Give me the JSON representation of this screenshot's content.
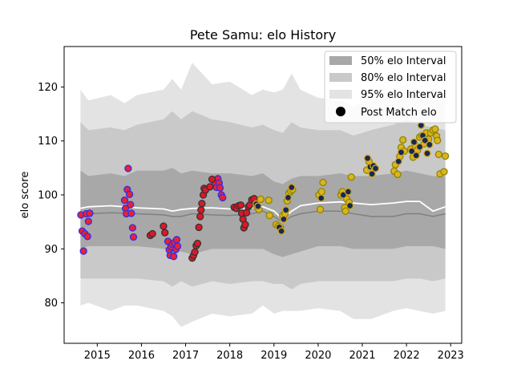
{
  "chart_data": {
    "type": "scatter",
    "title": "Pete Samu: elo History",
    "xlabel": "",
    "ylabel": "elo score",
    "xlim": [
      2014.25,
      2023.25
    ],
    "ylim": [
      72.5,
      127.5
    ],
    "x_ticks": [
      "2015",
      "2016",
      "2017",
      "2018",
      "2019",
      "2020",
      "2021",
      "2022",
      "2023"
    ],
    "y_ticks": [
      "80",
      "90",
      "100",
      "110",
      "120"
    ],
    "grid": false,
    "legend": {
      "placement": "top-right",
      "entries": [
        "50% elo Interval",
        "80% elo Interval",
        "95% elo Interval",
        "Post Match elo"
      ]
    },
    "colors": {
      "band50": "#a8a8a8",
      "band80": "#c9c9c9",
      "band95": "#e3e3e3",
      "median_line": "#808080",
      "mean_line": "#ffffff",
      "group_blue_face": "#ee1f30",
      "group_blue_edge": "#3030e6",
      "group_red_face": "#dd1727",
      "group_red_edge": "#333333",
      "group_yellow_face": "#e0b21f",
      "group_yellow_edge": "#888800",
      "group_navy_face": "#172a4e",
      "group_navy_edge": "#d4a520"
    },
    "bands": {
      "x": [
        2014.62,
        2014.8,
        2015.3,
        2015.62,
        2015.9,
        2016.5,
        2016.7,
        2016.9,
        2017.15,
        2017.6,
        2018.0,
        2018.5,
        2018.75,
        2019.0,
        2019.2,
        2019.4,
        2019.6,
        2020.0,
        2020.5,
        2020.8,
        2021.2,
        2021.7,
        2022.0,
        2022.3,
        2022.6,
        2022.88
      ],
      "p95_upper": [
        119.5,
        117.5,
        118.5,
        117.0,
        118.5,
        119.5,
        121.5,
        119.5,
        124.5,
        120.5,
        121.0,
        118.5,
        119.5,
        119.0,
        119.5,
        122.5,
        119.5,
        118.0,
        117.5,
        116.5,
        118.0,
        119.5,
        120.5,
        119.0,
        119.0,
        118.0
      ],
      "p80_upper": [
        113.5,
        112.0,
        112.5,
        112.0,
        113.0,
        114.0,
        115.5,
        114.0,
        115.5,
        114.0,
        113.5,
        112.5,
        113.0,
        112.0,
        111.5,
        113.5,
        112.5,
        112.0,
        112.0,
        111.0,
        112.0,
        113.0,
        114.0,
        113.0,
        112.5,
        112.0
      ],
      "p50_upper": [
        104.5,
        103.5,
        104.0,
        103.5,
        104.5,
        104.5,
        105.0,
        104.0,
        104.5,
        104.0,
        104.0,
        103.5,
        104.0,
        102.5,
        102.0,
        103.0,
        103.5,
        103.5,
        104.0,
        103.5,
        103.5,
        104.0,
        104.5,
        104.0,
        103.5,
        103.5
      ],
      "median": [
        96.5,
        96.5,
        96.7,
        96.6,
        96.5,
        96.3,
        96.0,
        96.0,
        96.5,
        96.3,
        96.2,
        96.5,
        97.0,
        96.0,
        95.0,
        96.0,
        96.5,
        97.0,
        97.0,
        96.5,
        96.0,
        96.0,
        96.5,
        96.5,
        96.0,
        96.5
      ],
      "mean": [
        97.5,
        97.8,
        98.0,
        97.8,
        97.6,
        97.4,
        97.0,
        97.3,
        97.5,
        97.6,
        97.4,
        97.6,
        97.8,
        97.0,
        95.5,
        97.0,
        98.0,
        98.5,
        98.7,
        98.5,
        98.2,
        98.5,
        98.8,
        98.8,
        97.0,
        97.8
      ],
      "p50_lower": [
        90.0,
        90.5,
        90.5,
        90.5,
        90.5,
        90.0,
        89.5,
        89.5,
        89.0,
        90.0,
        90.0,
        90.0,
        90.0,
        89.0,
        88.5,
        89.0,
        89.5,
        90.5,
        90.5,
        90.0,
        90.0,
        90.0,
        90.5,
        90.5,
        90.5,
        90.0
      ],
      "p80_lower": [
        84.5,
        84.5,
        84.5,
        84.5,
        84.5,
        84.0,
        83.0,
        84.0,
        83.0,
        84.0,
        83.5,
        84.0,
        84.0,
        83.5,
        83.5,
        82.5,
        83.5,
        84.0,
        84.0,
        84.0,
        84.0,
        84.0,
        84.5,
        84.5,
        84.0,
        84.5
      ],
      "p95_lower": [
        79.5,
        80.0,
        78.5,
        79.5,
        79.5,
        78.5,
        77.5,
        75.5,
        76.5,
        78.0,
        77.5,
        78.0,
        79.5,
        78.0,
        78.5,
        78.5,
        78.5,
        79.0,
        78.5,
        77.0,
        77.0,
        78.5,
        79.0,
        78.5,
        78.0,
        78.5
      ]
    },
    "series": [
      {
        "group": "blue",
        "points": [
          [
            2014.63,
            96.3
          ],
          [
            2014.66,
            93.3
          ],
          [
            2014.69,
            89.6
          ],
          [
            2014.72,
            92.8
          ],
          [
            2014.75,
            96.5
          ],
          [
            2014.78,
            92.3
          ],
          [
            2014.8,
            95.1
          ],
          [
            2014.83,
            96.6
          ],
          [
            2015.62,
            99.0
          ],
          [
            2015.64,
            97.5
          ],
          [
            2015.66,
            96.5
          ],
          [
            2015.68,
            101.0
          ],
          [
            2015.7,
            104.9
          ],
          [
            2015.73,
            100.1
          ],
          [
            2015.75,
            98.2
          ],
          [
            2015.77,
            96.6
          ],
          [
            2015.8,
            93.9
          ],
          [
            2015.82,
            92.2
          ],
          [
            2016.6,
            91.4
          ],
          [
            2016.63,
            89.8
          ],
          [
            2016.65,
            88.8
          ],
          [
            2016.67,
            90.4
          ],
          [
            2016.7,
            90.9
          ],
          [
            2016.73,
            88.6
          ],
          [
            2016.75,
            91.2
          ],
          [
            2016.78,
            89.9
          ],
          [
            2016.8,
            91.7
          ],
          [
            2016.82,
            90.5
          ],
          [
            2017.67,
            102.0
          ],
          [
            2017.7,
            101.4
          ],
          [
            2017.73,
            103.0
          ],
          [
            2017.76,
            102.2
          ],
          [
            2017.78,
            101.3
          ],
          [
            2017.81,
            100.0
          ],
          [
            2017.84,
            99.5
          ]
        ]
      },
      {
        "group": "red",
        "points": [
          [
            2016.2,
            92.5
          ],
          [
            2016.25,
            92.8
          ],
          [
            2016.5,
            94.2
          ],
          [
            2016.53,
            93.0
          ],
          [
            2017.15,
            88.3
          ],
          [
            2017.18,
            88.8
          ],
          [
            2017.21,
            89.4
          ],
          [
            2017.24,
            90.6
          ],
          [
            2017.27,
            91.0
          ],
          [
            2017.3,
            94.0
          ],
          [
            2017.33,
            96.0
          ],
          [
            2017.35,
            97.2
          ],
          [
            2017.37,
            98.4
          ],
          [
            2017.4,
            100.0
          ],
          [
            2017.42,
            101.2
          ],
          [
            2017.45,
            100.9
          ],
          [
            2017.55,
            101.5
          ],
          [
            2017.6,
            102.9
          ],
          [
            2018.1,
            97.7
          ],
          [
            2018.15,
            97.5
          ],
          [
            2018.2,
            98.0
          ],
          [
            2018.25,
            98.1
          ],
          [
            2018.27,
            96.6
          ],
          [
            2018.3,
            95.5
          ],
          [
            2018.32,
            93.9
          ],
          [
            2018.35,
            94.5
          ],
          [
            2018.38,
            96.7
          ],
          [
            2018.42,
            97.8
          ],
          [
            2018.45,
            98.1
          ],
          [
            2018.5,
            99.1
          ],
          [
            2018.55,
            99.3
          ]
        ]
      },
      {
        "group": "yellow",
        "points": [
          [
            2018.62,
            97.8
          ],
          [
            2018.66,
            97.3
          ],
          [
            2018.7,
            99.2
          ],
          [
            2018.88,
            99.0
          ],
          [
            2018.9,
            96.2
          ],
          [
            2019.05,
            94.5
          ],
          [
            2019.1,
            94.2
          ],
          [
            2019.15,
            93.9
          ],
          [
            2019.2,
            96.2
          ],
          [
            2019.25,
            96.5
          ],
          [
            2019.3,
            98.9
          ],
          [
            2019.34,
            100.3
          ],
          [
            2019.38,
            100.7
          ],
          [
            2019.42,
            101.0
          ],
          [
            2020.02,
            100.0
          ],
          [
            2020.05,
            97.3
          ],
          [
            2020.08,
            100.6
          ],
          [
            2020.11,
            102.3
          ],
          [
            2020.52,
            100.0
          ],
          [
            2020.55,
            100.6
          ],
          [
            2020.6,
            97.6
          ],
          [
            2020.62,
            97.0
          ],
          [
            2020.65,
            99.2
          ],
          [
            2020.7,
            98.6
          ],
          [
            2020.75,
            103.3
          ],
          [
            2021.1,
            104.6
          ],
          [
            2021.15,
            106.2
          ],
          [
            2021.72,
            104.4
          ],
          [
            2021.75,
            105.6
          ],
          [
            2021.8,
            103.8
          ],
          [
            2021.85,
            107.1
          ],
          [
            2021.88,
            108.8
          ],
          [
            2021.92,
            110.2
          ],
          [
            2021.95,
            108.1
          ],
          [
            2022.1,
            108.5
          ],
          [
            2022.15,
            107.0
          ],
          [
            2022.2,
            109.2
          ],
          [
            2022.25,
            108.3
          ],
          [
            2022.3,
            110.7
          ],
          [
            2022.35,
            111.0
          ],
          [
            2022.4,
            109.5
          ],
          [
            2022.45,
            111.5
          ],
          [
            2022.5,
            110.3
          ],
          [
            2022.55,
            111.5
          ],
          [
            2022.6,
            112.0
          ],
          [
            2022.65,
            112.2
          ],
          [
            2022.68,
            110.9
          ],
          [
            2022.7,
            110.1
          ],
          [
            2022.73,
            107.5
          ],
          [
            2022.76,
            103.9
          ],
          [
            2022.85,
            104.3
          ],
          [
            2022.88,
            107.2
          ]
        ]
      },
      {
        "group": "navy",
        "points": [
          [
            2018.6,
            98.3
          ],
          [
            2018.64,
            97.9
          ],
          [
            2019.12,
            94.0
          ],
          [
            2019.17,
            93.3
          ],
          [
            2019.22,
            95.5
          ],
          [
            2019.27,
            97.2
          ],
          [
            2019.32,
            99.5
          ],
          [
            2019.4,
            101.4
          ],
          [
            2020.07,
            99.4
          ],
          [
            2020.57,
            100.0
          ],
          [
            2020.68,
            100.6
          ],
          [
            2020.72,
            98.0
          ],
          [
            2021.12,
            106.8
          ],
          [
            2021.18,
            105.2
          ],
          [
            2021.22,
            103.9
          ],
          [
            2021.25,
            105.4
          ],
          [
            2021.3,
            104.9
          ],
          [
            2021.82,
            106.2
          ],
          [
            2021.88,
            107.9
          ],
          [
            2022.12,
            108.1
          ],
          [
            2022.17,
            109.8
          ],
          [
            2022.22,
            107.3
          ],
          [
            2022.3,
            108.9
          ],
          [
            2022.33,
            112.9
          ],
          [
            2022.37,
            111.0
          ],
          [
            2022.42,
            110.1
          ],
          [
            2022.47,
            107.7
          ],
          [
            2022.52,
            109.3
          ]
        ]
      }
    ]
  }
}
